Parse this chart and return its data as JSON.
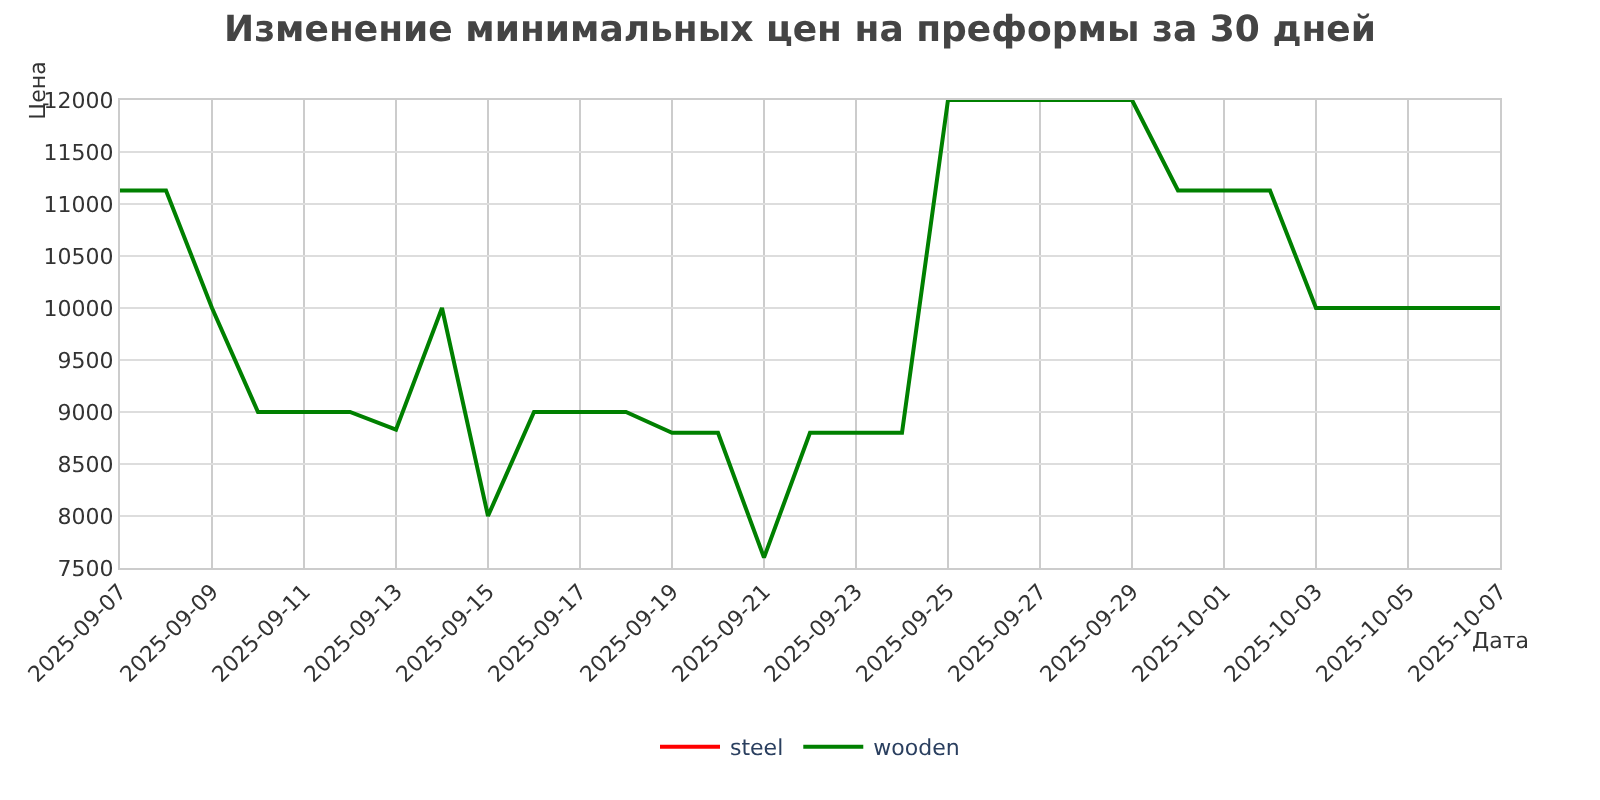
{
  "chart_data": {
    "type": "line",
    "title": "Изменение минимальных цен на преформы за 30 дней",
    "xlabel": "Дата",
    "ylabel": "Цена",
    "x": [
      "2025-09-07",
      "2025-09-08",
      "2025-09-09",
      "2025-09-10",
      "2025-09-11",
      "2025-09-12",
      "2025-09-13",
      "2025-09-14",
      "2025-09-15",
      "2025-09-16",
      "2025-09-17",
      "2025-09-18",
      "2025-09-19",
      "2025-09-20",
      "2025-09-21",
      "2025-09-22",
      "2025-09-23",
      "2025-09-24",
      "2025-09-25",
      "2025-09-26",
      "2025-09-27",
      "2025-09-28",
      "2025-09-29",
      "2025-09-30",
      "2025-10-01",
      "2025-10-02",
      "2025-10-03",
      "2025-10-04",
      "2025-10-05",
      "2025-10-06",
      "2025-10-07"
    ],
    "series": [
      {
        "name": "steel",
        "color": "#ff0000",
        "values": [
          null,
          null,
          null,
          null,
          null,
          null,
          null,
          null,
          null,
          null,
          null,
          null,
          null,
          null,
          null,
          null,
          null,
          null,
          null,
          null,
          null,
          null,
          null,
          null,
          null,
          null,
          null,
          null,
          null,
          null,
          null
        ]
      },
      {
        "name": "wooden",
        "color": "#008000",
        "values": [
          11130,
          11130,
          10000,
          9000,
          9000,
          9000,
          8830,
          10000,
          8000,
          9000,
          9000,
          9000,
          8800,
          8800,
          7600,
          8800,
          8800,
          8800,
          12000,
          12000,
          12000,
          12000,
          12000,
          11130,
          11130,
          11130,
          10000,
          10000,
          10000,
          10000,
          10000
        ]
      }
    ],
    "xlim": [
      "2025-09-07",
      "2025-10-07"
    ],
    "xticks": [
      "2025-09-07",
      "2025-09-09",
      "2025-09-11",
      "2025-09-13",
      "2025-09-15",
      "2025-09-17",
      "2025-09-19",
      "2025-09-21",
      "2025-09-23",
      "2025-09-25",
      "2025-09-27",
      "2025-09-29",
      "2025-10-01",
      "2025-10-03",
      "2025-10-05",
      "2025-10-07"
    ],
    "ylim": [
      7500,
      12000
    ],
    "yticks": [
      7500,
      8000,
      8500,
      9000,
      9500,
      10000,
      10500,
      11000,
      11500,
      12000
    ],
    "grid": true,
    "legend": "bottom",
    "marker": "none",
    "line_style": "solid"
  }
}
